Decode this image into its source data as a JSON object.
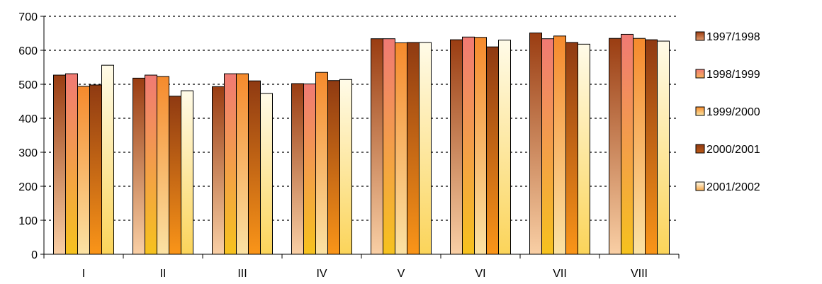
{
  "chart_data": {
    "type": "bar",
    "title": "",
    "xlabel": "",
    "ylabel": "",
    "ylim": [
      0,
      700
    ],
    "yticks": [
      0,
      100,
      200,
      300,
      400,
      500,
      600,
      700
    ],
    "grid": "horizontal dotted",
    "legend_position": "right",
    "categories": [
      "I",
      "II",
      "III",
      "IV",
      "V",
      "VI",
      "VII",
      "VIII"
    ],
    "series": [
      {
        "name": "1997/1998",
        "values": [
          527,
          518,
          493,
          502,
          634,
          631,
          651,
          635
        ]
      },
      {
        "name": "1998/1999",
        "values": [
          531,
          527,
          531,
          501,
          634,
          639,
          634,
          647
        ]
      },
      {
        "name": "1999/2000",
        "values": [
          494,
          523,
          531,
          535,
          622,
          638,
          642,
          635
        ]
      },
      {
        "name": "2000/2001",
        "values": [
          498,
          465,
          510,
          511,
          623,
          610,
          623,
          631
        ]
      },
      {
        "name": "2001/2002",
        "values": [
          556,
          481,
          473,
          514,
          623,
          630,
          618,
          627
        ]
      }
    ],
    "series_colors": [
      {
        "top": "#9a3d12",
        "bottom": "#f9cfa5",
        "legend": "#e29a6c"
      },
      {
        "top": "#f07a74",
        "bottom": "#f6c21e",
        "legend": "#f6b35a"
      },
      {
        "top": "#f58a2c",
        "bottom": "#fbe2a4",
        "legend": "#fbe5a2"
      },
      {
        "top": "#8f3a12",
        "bottom": "#fa9518",
        "legend": "#bc5a16"
      },
      {
        "top": "#fffbe8",
        "bottom": "#fbd45a",
        "legend": "#f7a84a"
      }
    ]
  }
}
